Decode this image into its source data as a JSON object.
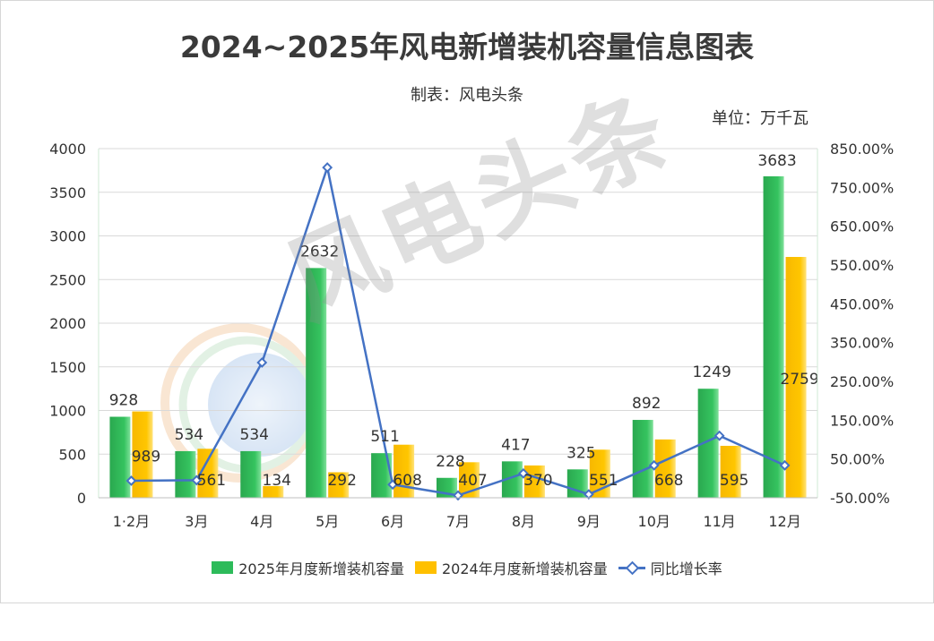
{
  "title": "2024~2025年风电新增装机容量信息图表",
  "subtitle": "制表：风电头条",
  "unit": "单位：万千瓦",
  "watermark": "风电头条",
  "colors": {
    "series2025": "#2dbb5a",
    "series2024": "#ffc000",
    "yoy": "#4472c4"
  },
  "chart_data": {
    "type": "bar",
    "categories": [
      "1·2月",
      "3月",
      "4月",
      "5月",
      "6月",
      "7月",
      "8月",
      "9月",
      "10月",
      "11月",
      "12月"
    ],
    "series": [
      {
        "name": "2025年月度新增装机容量",
        "type": "bar",
        "axis": "left",
        "values": [
          928,
          534,
          534,
          2632,
          511,
          228,
          417,
          325,
          892,
          1249,
          3683
        ]
      },
      {
        "name": "2024年月度新增装机容量",
        "type": "bar",
        "axis": "left",
        "values": [
          989,
          561,
          134,
          292,
          608,
          407,
          370,
          551,
          668,
          595,
          2759
        ]
      },
      {
        "name": "同比增长率",
        "type": "line",
        "axis": "right",
        "values": [
          -6.17,
          -4.81,
          298.51,
          801.37,
          -15.95,
          -43.98,
          12.7,
          -41.02,
          33.53,
          109.92,
          33.49
        ]
      }
    ],
    "ylim": [
      0,
      4000
    ],
    "yticks": [
      "0",
      "500",
      "1000",
      "1500",
      "2000",
      "2500",
      "3000",
      "3500",
      "4000"
    ],
    "y2lim": [
      -50,
      850
    ],
    "y2ticks": [
      "-50.00%",
      "50.00%",
      "150.00%",
      "250.00%",
      "350.00%",
      "450.00%",
      "550.00%",
      "650.00%",
      "750.00%",
      "850.00%"
    ],
    "grid": "horizontal",
    "legend": "bottom"
  }
}
